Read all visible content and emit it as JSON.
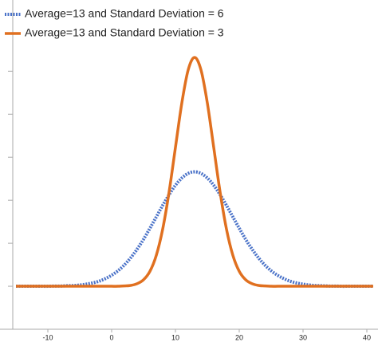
{
  "chart_data": {
    "type": "line",
    "x": [
      -15,
      -14,
      -13,
      -12,
      -11,
      -10,
      -9,
      -8,
      -7,
      -6,
      -5,
      -4,
      -3,
      -2,
      -1,
      0,
      1,
      2,
      3,
      4,
      5,
      6,
      7,
      8,
      9,
      10,
      11,
      12,
      13,
      14,
      15,
      16,
      17,
      18,
      19,
      20,
      21,
      22,
      23,
      24,
      25,
      26,
      27,
      28,
      29,
      30,
      31,
      32,
      33,
      34,
      35,
      36,
      37,
      38,
      39,
      40,
      41
    ],
    "series": [
      {
        "name": "Average=13 and Standard Deviation = 6",
        "color": "#4a72c8",
        "style": "dotted",
        "values": [
          0,
          0,
          0,
          0,
          0,
          0,
          0.0001,
          0.0001,
          0.0003,
          0.0004,
          0.0007,
          0.0012,
          0.0019,
          0.0029,
          0.0044,
          0.0064,
          0.009,
          0.0124,
          0.0166,
          0.0216,
          0.0273,
          0.0337,
          0.0403,
          0.047,
          0.0532,
          0.0587,
          0.0629,
          0.0656,
          0.0665,
          0.0656,
          0.0629,
          0.0587,
          0.0532,
          0.047,
          0.0403,
          0.0337,
          0.0273,
          0.0216,
          0.0166,
          0.0124,
          0.009,
          0.0064,
          0.0044,
          0.0029,
          0.0019,
          0.0012,
          0.0007,
          0.0004,
          0.0003,
          0.0001,
          0.0001,
          0,
          0,
          0,
          0,
          0,
          0
        ]
      },
      {
        "name": "Average=13 and Standard Deviation = 3",
        "color": "#e07020",
        "style": "solid",
        "values": [
          0,
          0,
          0,
          0,
          0,
          0,
          0,
          0,
          0,
          0,
          0,
          0,
          0,
          0,
          0,
          0,
          0,
          0.0002,
          0.0005,
          0.0015,
          0.0038,
          0.0087,
          0.018,
          0.0332,
          0.0547,
          0.0807,
          0.1065,
          0.1258,
          0.133,
          0.1258,
          0.1065,
          0.0807,
          0.0547,
          0.0332,
          0.018,
          0.0087,
          0.0038,
          0.0015,
          0.0005,
          0.0002,
          0,
          0,
          0,
          0,
          0,
          0,
          0,
          0,
          0,
          0,
          0,
          0,
          0,
          0,
          0,
          0,
          0
        ]
      }
    ],
    "xlim": [
      -15.5,
      41.5
    ],
    "xticks": [
      -10,
      0,
      10,
      20,
      30,
      40
    ],
    "ylim": [
      -0.025,
      0.165
    ],
    "yticks": [
      0,
      0.025,
      0.05,
      0.075,
      0.1,
      0.125
    ],
    "legend": "top-left"
  }
}
